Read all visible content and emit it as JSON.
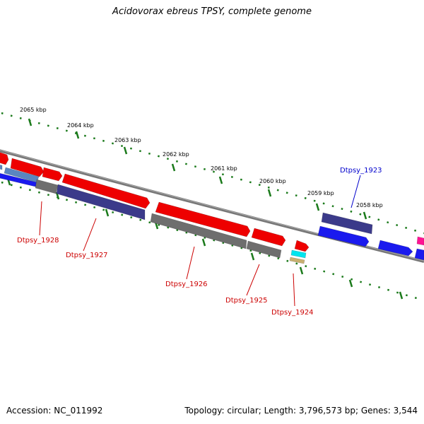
{
  "title": "Acidovorax ebreus TPSY, complete genome",
  "footer": {
    "accession": "Accession: NC_011992",
    "summary": "Topology: circular; Length: 3,796,573 bp; Genes: 3,544"
  },
  "colors": {
    "backbone": "#7a7a7a",
    "tick_marks": "#1b7a1b",
    "label_red": "#cc0000",
    "label_blue": "#0000cc"
  },
  "scale_labels": [
    "2065 kbp",
    "2064 kbp",
    "2063 kbp",
    "2062 kbp",
    "2061 kbp",
    "2060 kbp",
    "2059 kbp",
    "2058 kbp"
  ],
  "gene_labels": [
    {
      "text": "Dtpsy_1928",
      "color": "#cc0000"
    },
    {
      "text": "Dtpsy_1927",
      "color": "#cc0000"
    },
    {
      "text": "Dtpsy_1926",
      "color": "#cc0000"
    },
    {
      "text": "Dtpsy_1925",
      "color": "#cc0000"
    },
    {
      "text": "Dtpsy_1924",
      "color": "#cc0000"
    },
    {
      "text": "Dtpsy_1923",
      "color": "#0000cc"
    }
  ],
  "features": [
    {
      "color": "#ee0000"
    },
    {
      "color": "#ee0000"
    },
    {
      "color": "#ee0000"
    },
    {
      "color": "#ee0000"
    },
    {
      "color": "#ee0000"
    },
    {
      "color": "#ee0000"
    },
    {
      "color": "#ee0000"
    },
    {
      "color": "#3b3a8a"
    },
    {
      "color": "#3b3a8a"
    },
    {
      "color": "#1a1aee"
    },
    {
      "color": "#1a1aee"
    },
    {
      "color": "#1a1aee"
    },
    {
      "color": "#1a1aee"
    },
    {
      "color": "#ff1493"
    },
    {
      "color": "#5a86c0"
    },
    {
      "color": "#6e6e6e"
    },
    {
      "color": "#6e6e6e"
    },
    {
      "color": "#6e6e6e"
    },
    {
      "color": "#00e5ee"
    },
    {
      "color": "#c8b070"
    }
  ]
}
